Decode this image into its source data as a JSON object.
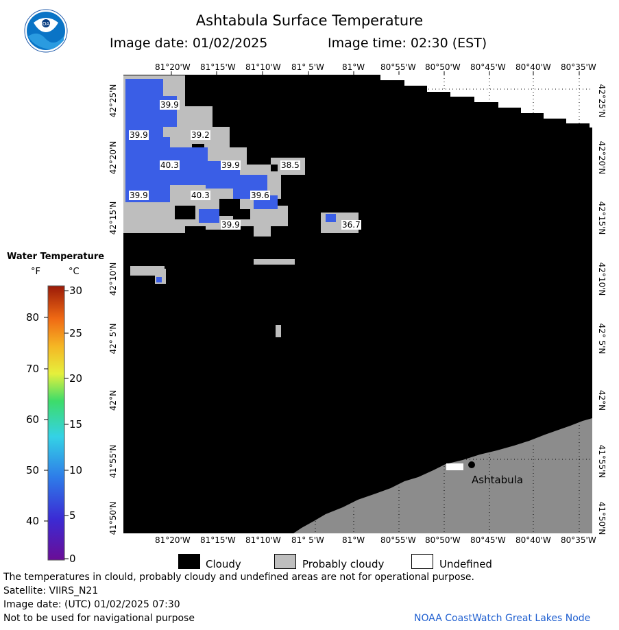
{
  "title": "Ashtabula Surface Temperature",
  "image_date_label": "Image date: 01/02/2025",
  "image_time_label": "Image time: 02:30 (EST)",
  "logo_text": "NOAA",
  "lon_labels": [
    "81°20'W",
    "81°15'W",
    "81°10'W",
    "81° 5'W",
    "81°W",
    "80°55'W",
    "80°50'W",
    "80°45'W",
    "80°40'W",
    "80°35'W"
  ],
  "lat_labels": [
    "42°25'N",
    "42°20'N",
    "42°15'N",
    "42°10'N",
    "42° 5'N",
    "42°N",
    "41°55'N",
    "41°50'N"
  ],
  "temperature_labels": [
    {
      "value": "39.9"
    },
    {
      "value": "39.9"
    },
    {
      "value": "39.2"
    },
    {
      "value": "40.3"
    },
    {
      "value": "39.9"
    },
    {
      "value": "38.5"
    },
    {
      "value": "39.9"
    },
    {
      "value": "40.3"
    },
    {
      "value": "39.6"
    },
    {
      "value": "39.9"
    },
    {
      "value": "36.7"
    }
  ],
  "place_label": "Ashtabula",
  "legend": {
    "title": "Water Temperature",
    "unit_f": "°F",
    "unit_c": "°C",
    "f_ticks": [
      "80",
      "70",
      "60",
      "50",
      "40"
    ],
    "c_ticks": [
      "30",
      "25",
      "20",
      "15",
      "10",
      "5",
      "0"
    ],
    "range_c": [
      0,
      30
    ]
  },
  "key": {
    "cloudy": "Cloudy",
    "probably_cloudy": "Probably cloudy",
    "undefined": "Undefined"
  },
  "notes": {
    "disclaimer": "The temperatures in clould, probably cloudy and undefined areas are not for operational purpose.",
    "satellite": "Satellite: VIIRS_N21",
    "utc_date": "Image date: (UTC) 01/02/2025  07:30",
    "navigation": "Not to be used for navigational purpose"
  },
  "credit": "NOAA CoastWatch Great Lakes Node",
  "colors": {
    "cloudy": "#000000",
    "probably_cloudy": "#bebebe",
    "land": "#8c8c8c",
    "undefined": "#ffffff",
    "water_temp": "#3a5ee6",
    "credit": "#1f5fd0"
  }
}
